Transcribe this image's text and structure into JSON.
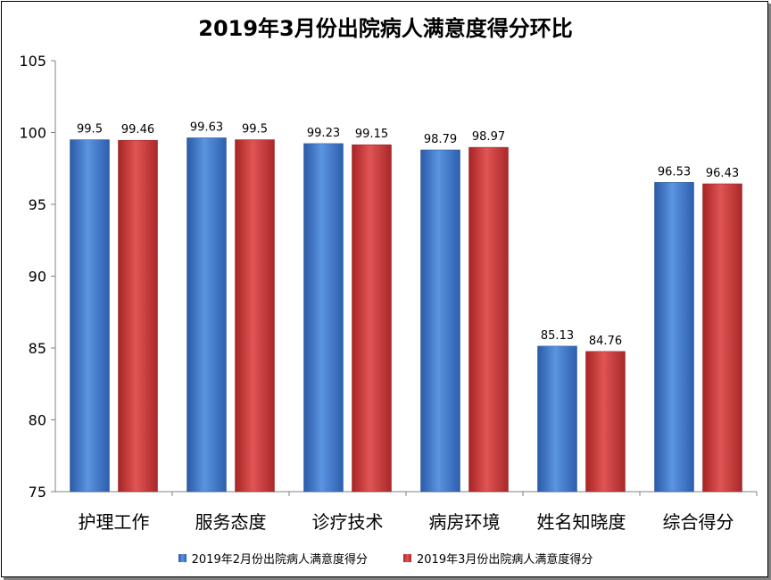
{
  "chart_data": {
    "type": "bar",
    "title": "2019年3月份出院病人满意度得分环比",
    "categories": [
      "护理工作",
      "服务态度",
      "诊疗技术",
      "病房环境",
      "姓名知晓度",
      "综合得分"
    ],
    "series": [
      {
        "name": "2019年2月份出院病人满意度得分",
        "color": "#3a74c8",
        "values": [
          99.5,
          99.63,
          99.23,
          98.79,
          85.13,
          96.53
        ],
        "labels": [
          "99.5",
          "99.63",
          "99.23",
          "98.79",
          "85.13",
          "96.53"
        ]
      },
      {
        "name": "2019年3月份出院病人满意度得分",
        "color": "#cc3434",
        "values": [
          99.46,
          99.5,
          99.15,
          98.97,
          84.76,
          96.43
        ],
        "labels": [
          "99.46",
          "99.5",
          "99.15",
          "98.97",
          "84.76",
          "96.43"
        ]
      }
    ],
    "ylim": [
      75,
      105
    ],
    "yticks": [
      "75",
      "80",
      "85",
      "90",
      "95",
      "100",
      "105"
    ],
    "grid": false,
    "legend_position": "bottom"
  }
}
